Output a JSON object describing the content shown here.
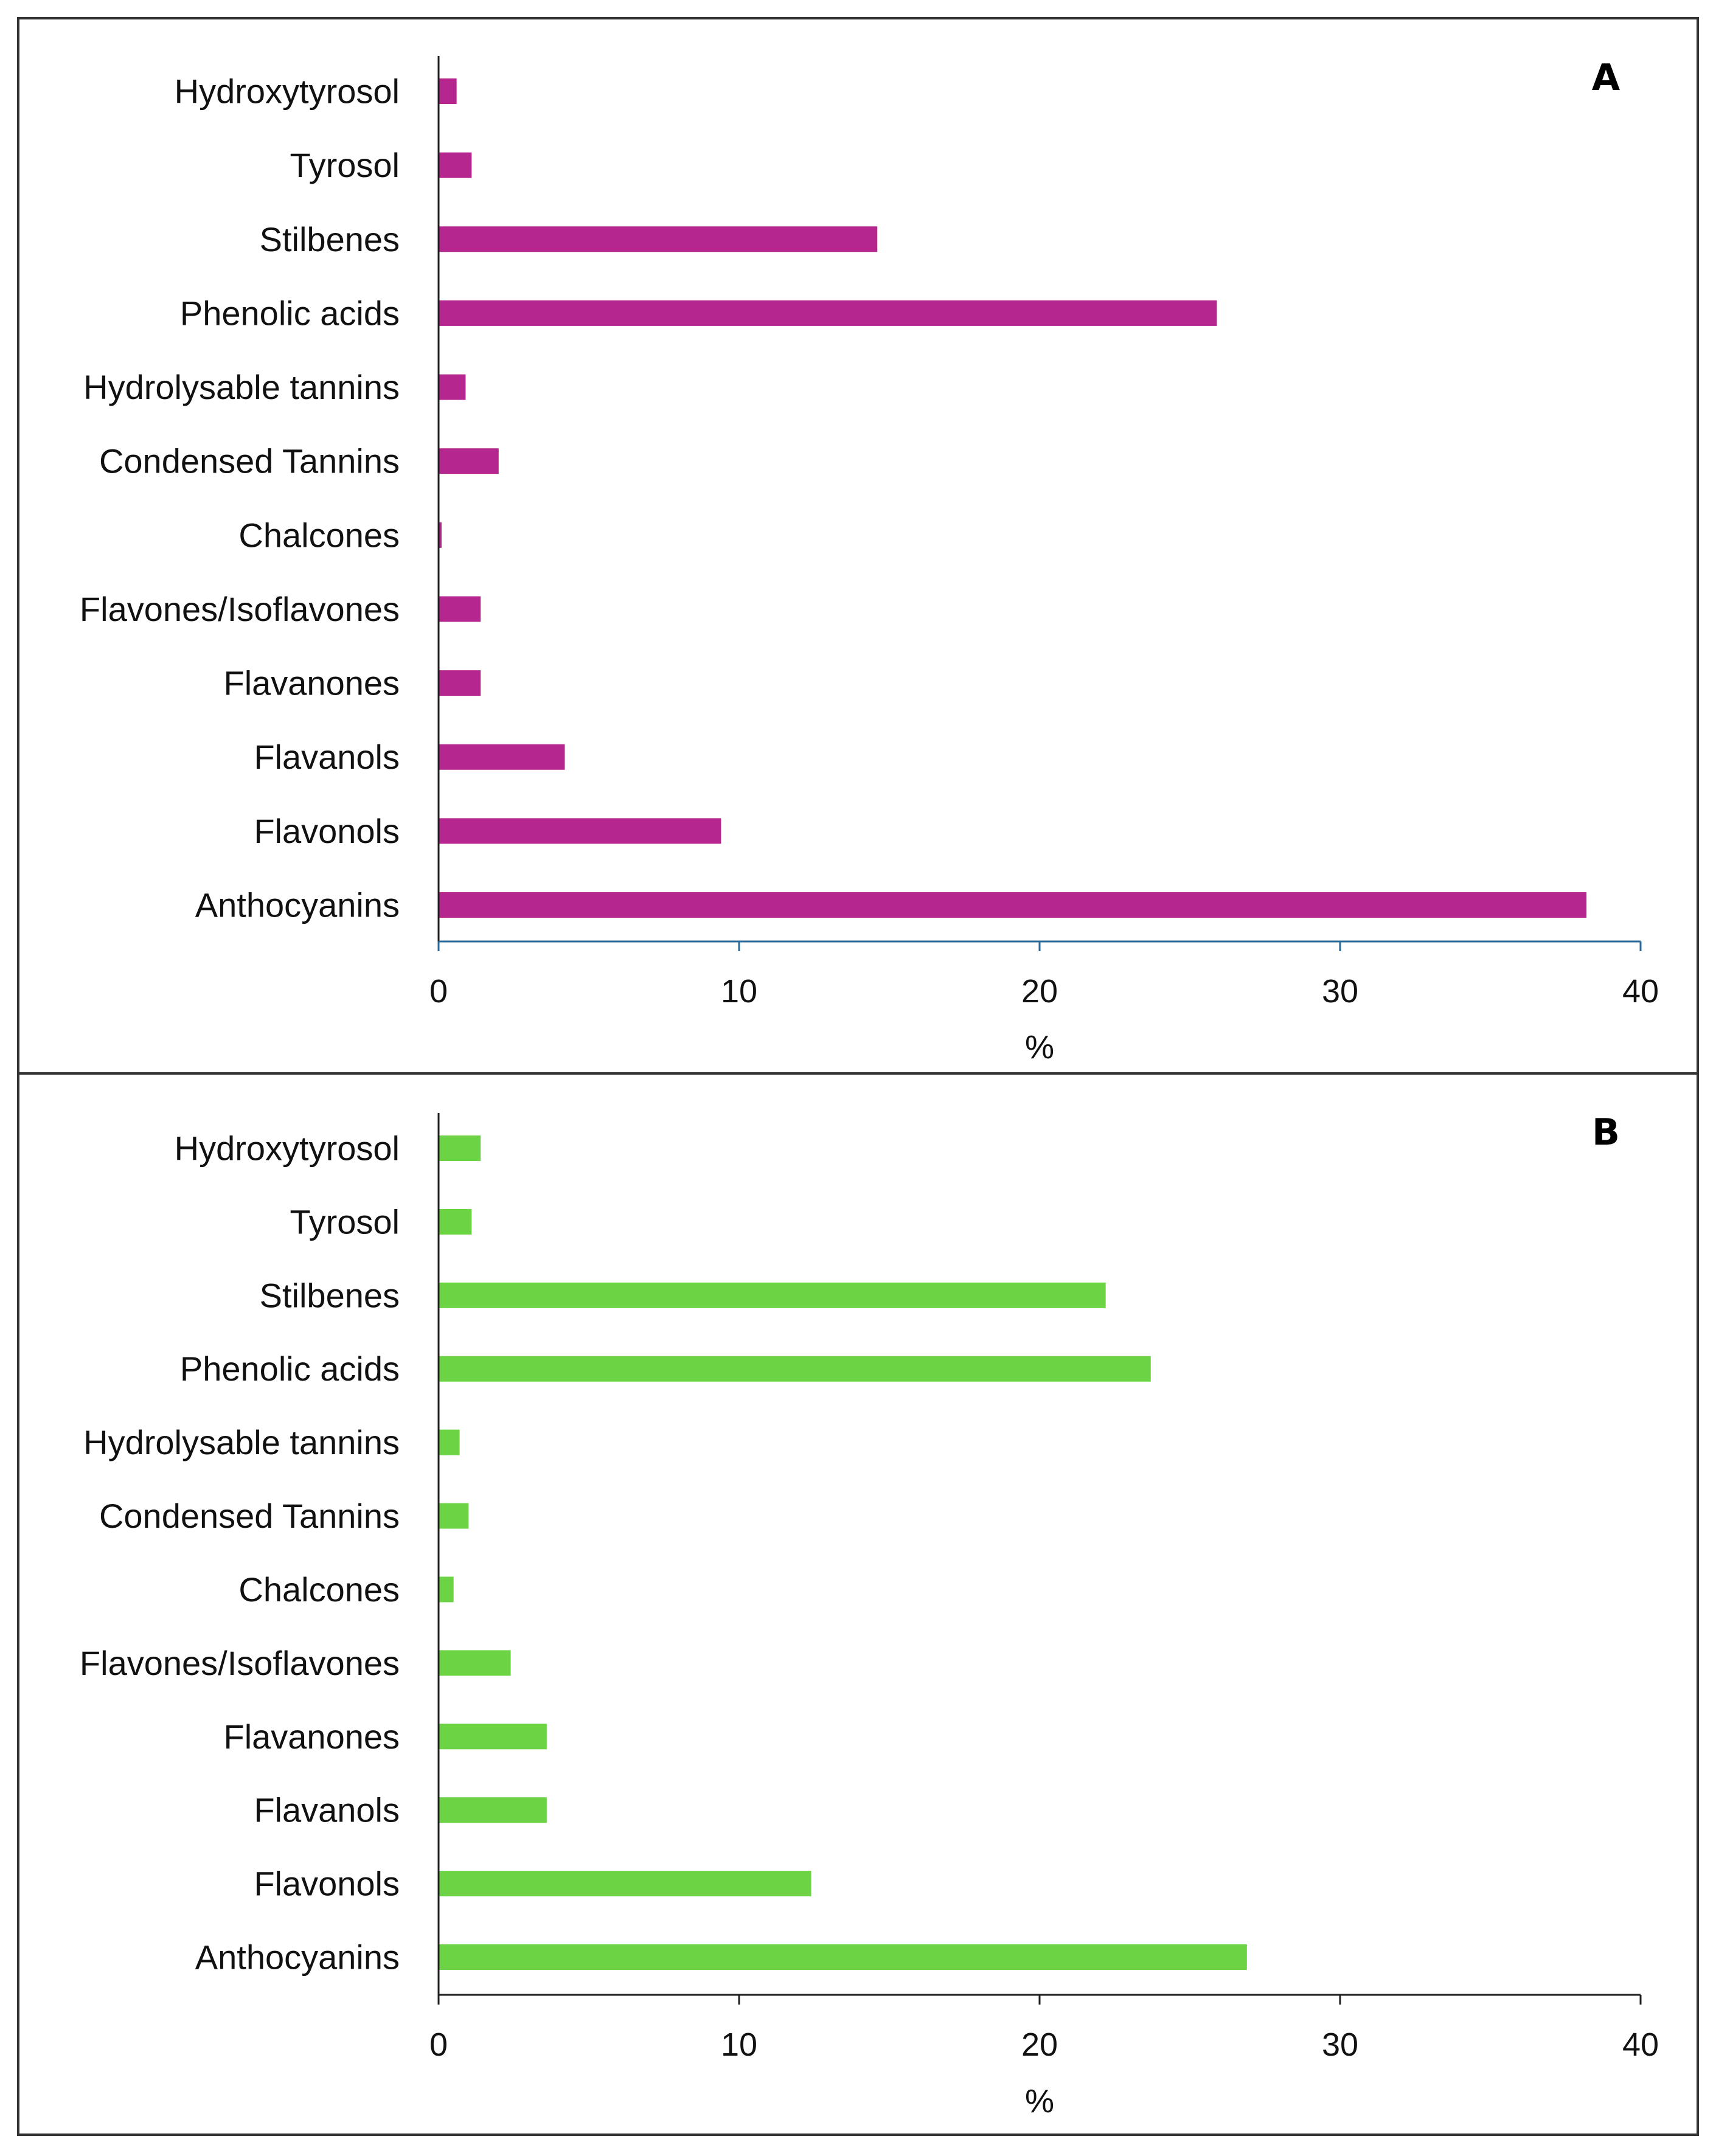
{
  "chart_data": [
    {
      "type": "bar",
      "orientation": "horizontal",
      "panel_label": "A",
      "categories": [
        "Hydroxytyrosol",
        "Tyrosol",
        "Stilbenes",
        "Phenolic acids",
        "Hydrolysable tannins",
        "Condensed Tannins",
        "Chalcones",
        "Flavones/Isoflavones",
        "Flavanones",
        "Flavanols",
        "Flavonols",
        "Anthocyanins"
      ],
      "values": [
        0.6,
        1.1,
        14.6,
        25.9,
        0.9,
        2.0,
        0.1,
        1.4,
        1.4,
        4.2,
        9.4,
        38.2
      ],
      "color": "#b5268f",
      "xlabel": "%",
      "xlim": [
        0,
        40
      ],
      "xticks": [
        "0",
        "10",
        "20",
        "30",
        "40"
      ],
      "grid": false,
      "legend": "none"
    },
    {
      "type": "bar",
      "orientation": "horizontal",
      "panel_label": "B",
      "categories": [
        "Hydroxytyrosol",
        "Tyrosol",
        "Stilbenes",
        "Phenolic acids",
        "Hydrolysable tannins",
        "Condensed Tannins",
        "Chalcones",
        "Flavones/Isoflavones",
        "Flavanones",
        "Flavanols",
        "Flavonols",
        "Anthocyanins"
      ],
      "values": [
        1.4,
        1.1,
        22.2,
        23.7,
        0.7,
        1.0,
        0.5,
        2.4,
        3.6,
        3.6,
        12.4,
        26.9
      ],
      "color": "#6cd444",
      "xlabel": "%",
      "xlim": [
        0,
        40
      ],
      "xticks": [
        "0",
        "10",
        "20",
        "30",
        "40"
      ],
      "grid": false,
      "legend": "none"
    }
  ]
}
